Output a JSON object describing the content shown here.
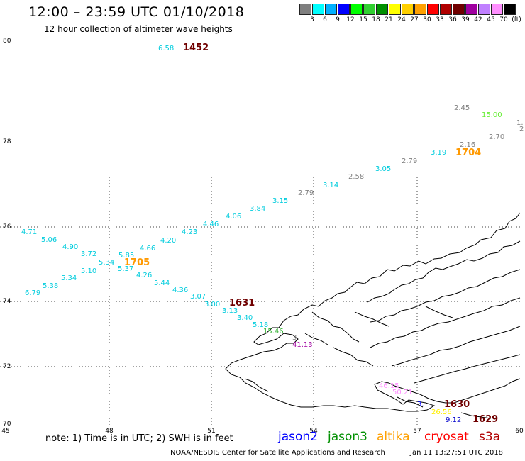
{
  "title": "12:00 – 23:59 UTC 01/10/2018",
  "subtitle": "12 hour collection of altimeter wave heights",
  "scale": {
    "colors": [
      "#7f7f7f",
      "#00ffff",
      "#00b0ff",
      "#0000ff",
      "#00ff00",
      "#30d030",
      "#009000",
      "#ffff00",
      "#ffd000",
      "#ffa000",
      "#ff0000",
      "#b00000",
      "#700000",
      "#a000a0",
      "#c080ff",
      "#ff90ff",
      "#000000"
    ],
    "labels": [
      "3",
      "6",
      "9",
      "12",
      "15",
      "18",
      "21",
      "24",
      "27",
      "30",
      "33",
      "36",
      "39",
      "42",
      "45",
      "70",
      "(ft)"
    ]
  },
  "axes": {
    "lon_ticks": [
      "45",
      "48",
      "51",
      "54",
      "57",
      "60"
    ],
    "lat_ticks": [
      "70",
      "72",
      "74",
      "76",
      "78",
      "80"
    ]
  },
  "note": "note:  1) Time is in UTC;  2) SWH is in feet",
  "legend": [
    {
      "label": "jason2",
      "color": "#0000ff"
    },
    {
      "label": "jason3",
      "color": "#009000"
    },
    {
      "label": "altika",
      "color": "#ffa000"
    },
    {
      "label": "cryosat",
      "color": "#ff0000"
    },
    {
      "label": "s3a",
      "color": "#b00000"
    }
  ],
  "credit": "NOAA/NESDIS Center for Satellite Applications and Research",
  "timestamp": "Jan 11  13:27:51 UTC 2018",
  "observations": [
    {
      "text": "6.58",
      "color": "#00ccdd"
    },
    {
      "text": "1452",
      "color": "#700000",
      "time": true
    },
    {
      "text": "2.45",
      "color": "#7f7f7f"
    },
    {
      "text": "15.00",
      "color": "#66ee33"
    },
    {
      "text": "1.",
      "color": "#7f7f7f"
    },
    {
      "text": "2",
      "color": "#7f7f7f"
    },
    {
      "text": "2.70",
      "color": "#7f7f7f"
    },
    {
      "text": "2.16",
      "color": "#7f7f7f"
    },
    {
      "text": "3.19",
      "color": "#00ccdd"
    },
    {
      "text": "1704",
      "color": "#ff9900",
      "time": true
    },
    {
      "text": "2.79",
      "color": "#7f7f7f"
    },
    {
      "text": "3.05",
      "color": "#00ccdd"
    },
    {
      "text": "2.58",
      "color": "#7f7f7f"
    },
    {
      "text": "3.14",
      "color": "#00ccdd"
    },
    {
      "text": "2.79",
      "color": "#7f7f7f"
    },
    {
      "text": "3.15",
      "color": "#00ccdd"
    },
    {
      "text": "3.84",
      "color": "#00ccdd"
    },
    {
      "text": "4.06",
      "color": "#00ccdd"
    },
    {
      "text": "4.46",
      "color": "#00ccdd"
    },
    {
      "text": "4.23",
      "color": "#00ccdd"
    },
    {
      "text": "4.20",
      "color": "#00ccdd"
    },
    {
      "text": "4.71",
      "color": "#00ccdd"
    },
    {
      "text": "5.06",
      "color": "#00ccdd"
    },
    {
      "text": "4.90",
      "color": "#00ccdd"
    },
    {
      "text": "3.72",
      "color": "#00ccdd"
    },
    {
      "text": "5.85",
      "color": "#00ccdd"
    },
    {
      "text": "4.66",
      "color": "#00ccdd"
    },
    {
      "text": "5.34",
      "color": "#00ccdd"
    },
    {
      "text": "1705",
      "color": "#ff9900",
      "time": true
    },
    {
      "text": "5.10",
      "color": "#00ccdd"
    },
    {
      "text": "5.37",
      "color": "#00ccdd"
    },
    {
      "text": "5.34",
      "color": "#00ccdd"
    },
    {
      "text": "4.26",
      "color": "#00ccdd"
    },
    {
      "text": "5.38",
      "color": "#00ccdd"
    },
    {
      "text": "5.44",
      "color": "#00ccdd"
    },
    {
      "text": "6.79",
      "color": "#00ccdd"
    },
    {
      "text": "4.36",
      "color": "#00ccdd"
    },
    {
      "text": "3.07",
      "color": "#00ccdd"
    },
    {
      "text": "3.00",
      "color": "#00ccdd"
    },
    {
      "text": "1631",
      "color": "#700000",
      "time": true
    },
    {
      "text": "3.13",
      "color": "#00ccdd"
    },
    {
      "text": "3.40",
      "color": "#00ccdd"
    },
    {
      "text": "5.18",
      "color": "#00ccdd"
    },
    {
      "text": "15.46",
      "color": "#30b030"
    },
    {
      "text": "3",
      "color": "#7f7f7f"
    },
    {
      "text": "41.13",
      "color": "#a000a0"
    },
    {
      "text": "46.15",
      "color": "#ff90ff"
    },
    {
      "text": "50.21",
      "color": "#ff90ff"
    },
    {
      "text": "3.",
      "color": "#0000ff"
    },
    {
      "text": "1630",
      "color": "#700000",
      "time": true
    },
    {
      "text": "26.56",
      "color": "#ffee00"
    },
    {
      "text": "9.12",
      "color": "#0000cc"
    },
    {
      "text": "1629",
      "color": "#700000",
      "time": true
    }
  ]
}
